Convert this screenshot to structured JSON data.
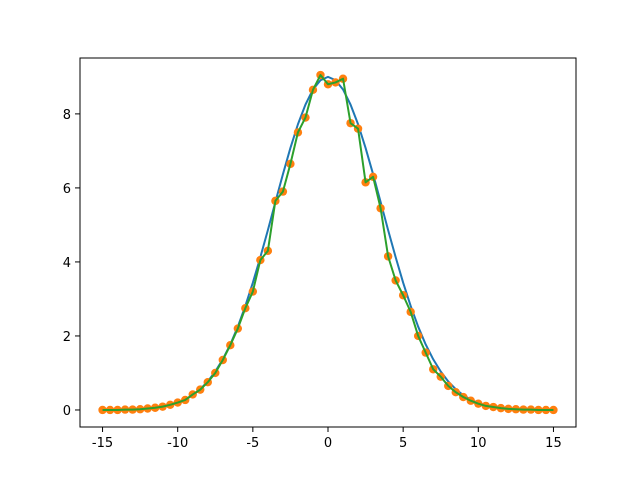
{
  "chart_data": {
    "type": "line",
    "x": [
      -15,
      -14.5,
      -14,
      -13.5,
      -13,
      -12.5,
      -12,
      -11.5,
      -11,
      -10.5,
      -10,
      -9.5,
      -9,
      -8.5,
      -8,
      -7.5,
      -7,
      -6.5,
      -6,
      -5.5,
      -5,
      -4.5,
      -4,
      -3.5,
      -3,
      -2.5,
      -2,
      -1.5,
      -1,
      -0.5,
      0,
      0.5,
      1,
      1.5,
      2,
      2.5,
      3,
      3.5,
      4,
      4.5,
      5,
      5.5,
      6,
      6.5,
      7,
      7.5,
      8,
      8.5,
      9,
      9.5,
      10,
      10.5,
      11,
      11.5,
      12,
      12.5,
      13,
      13.5,
      14,
      14.5,
      15
    ],
    "series": [
      {
        "kind": "line",
        "color": "#1f77b4",
        "values": [
          0,
          0,
          0,
          0.01,
          0.01,
          0.02,
          0.04,
          0.06,
          0.09,
          0.13,
          0.19,
          0.28,
          0.4,
          0.56,
          0.77,
          1.04,
          1.37,
          1.77,
          2.25,
          2.81,
          3.44,
          4.13,
          4.86,
          5.62,
          6.37,
          7.08,
          7.72,
          8.25,
          8.66,
          8.91,
          9,
          8.91,
          8.66,
          8.25,
          7.72,
          7.08,
          6.37,
          5.62,
          4.86,
          4.13,
          3.44,
          2.81,
          2.25,
          1.77,
          1.37,
          1.04,
          0.77,
          0.56,
          0.4,
          0.28,
          0.19,
          0.13,
          0.09,
          0.06,
          0.04,
          0.02,
          0.01,
          0.01,
          0,
          0,
          0
        ]
      },
      {
        "kind": "scatter",
        "color": "#ff7f0e",
        "values": [
          0,
          0,
          0,
          0.01,
          0.01,
          0.02,
          0.04,
          0.06,
          0.09,
          0.14,
          0.2,
          0.27,
          0.42,
          0.55,
          0.75,
          1.0,
          1.35,
          1.75,
          2.2,
          2.75,
          3.2,
          4.05,
          4.3,
          5.65,
          5.9,
          6.65,
          7.5,
          7.9,
          8.65,
          9.05,
          8.8,
          8.85,
          8.95,
          7.75,
          7.6,
          6.15,
          6.3,
          5.45,
          4.15,
          3.5,
          3.1,
          2.65,
          2.0,
          1.55,
          1.1,
          0.9,
          0.65,
          0.48,
          0.35,
          0.25,
          0.17,
          0.11,
          0.08,
          0.05,
          0.03,
          0.02,
          0.01,
          0.01,
          0,
          0,
          0
        ]
      },
      {
        "kind": "line",
        "color": "#2ca02c",
        "values": [
          0,
          0,
          0,
          0.01,
          0.01,
          0.02,
          0.04,
          0.06,
          0.09,
          0.14,
          0.2,
          0.27,
          0.42,
          0.55,
          0.75,
          1.0,
          1.35,
          1.75,
          2.2,
          2.75,
          3.2,
          4.05,
          4.3,
          5.65,
          5.9,
          6.65,
          7.5,
          7.9,
          8.65,
          9.05,
          8.8,
          8.85,
          8.95,
          7.75,
          7.6,
          6.15,
          6.3,
          5.45,
          4.15,
          3.5,
          3.1,
          2.65,
          2.0,
          1.55,
          1.1,
          0.9,
          0.65,
          0.48,
          0.35,
          0.25,
          0.17,
          0.11,
          0.08,
          0.05,
          0.03,
          0.02,
          0.01,
          0.01,
          0,
          0,
          0
        ]
      }
    ],
    "xlim": [
      -16.5,
      16.5
    ],
    "xticks": [
      -15,
      -10,
      -5,
      0,
      5,
      10,
      15
    ],
    "ylim": [
      -0.46,
      9.51
    ],
    "yticks": [
      0,
      2,
      4,
      6,
      8
    ],
    "grid": false
  }
}
